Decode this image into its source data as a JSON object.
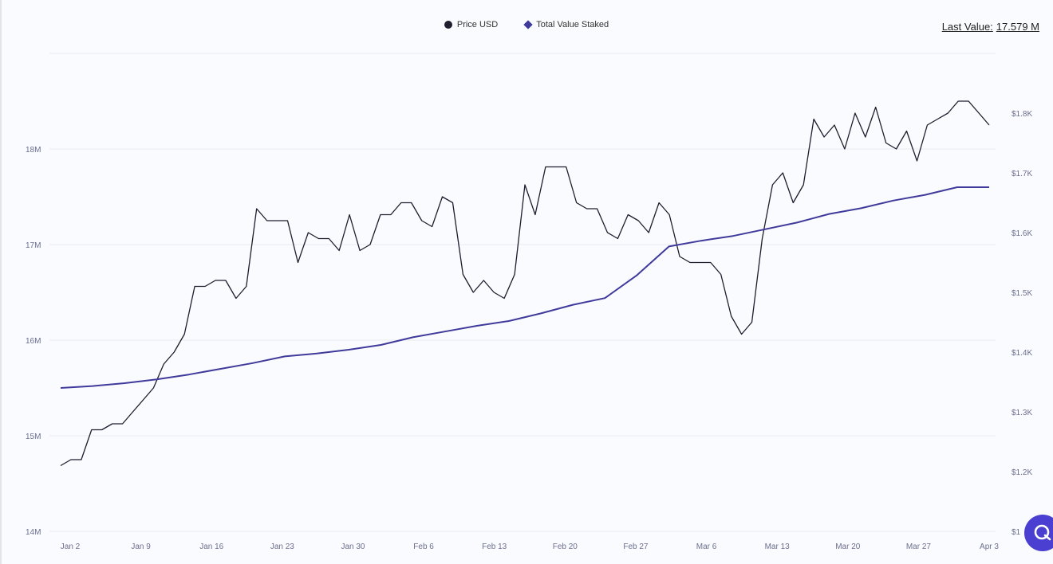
{
  "legend": {
    "price_label": "Price USD",
    "tvs_label": "Total Value Staked"
  },
  "last_value": {
    "label": "Last Value:",
    "value": "17.579 M"
  },
  "colors": {
    "price": "#1f1d2e",
    "tvs": "#3f3a9b",
    "grid": "#e9ebf2",
    "axis_text": "#6b6f8e",
    "chat_bubble": "#4a3fd0"
  },
  "chart_data": {
    "type": "line",
    "x_ticks": [
      "Jan 2",
      "Jan 9",
      "Jan 16",
      "Jan 23",
      "Jan 30",
      "Feb 6",
      "Feb 13",
      "Feb 20",
      "Feb 27",
      "Mar 6",
      "Mar 13",
      "Mar 20",
      "Mar 27",
      "Apr 3"
    ],
    "y_left": {
      "ticks": [
        14,
        15,
        16,
        17,
        18
      ],
      "tick_labels": [
        "14M",
        "15M",
        "16M",
        "17M",
        "18M"
      ],
      "range": [
        14,
        19
      ]
    },
    "y_right": {
      "ticks": [
        1,
        1.2,
        1.3,
        1.4,
        1.5,
        1.6,
        1.7,
        1.8
      ],
      "tick_labels": [
        "$1",
        "$1.2K",
        "$1.3K",
        "$1.4K",
        "$1.5K",
        "$1.6K",
        "$1.7K",
        "$1.8K"
      ],
      "range": [
        1.1,
        1.9
      ]
    },
    "grid": true,
    "series": [
      {
        "name": "Price USD",
        "axis": "right",
        "values": [
          1.21,
          1.22,
          1.22,
          1.27,
          1.27,
          1.28,
          1.28,
          1.3,
          1.32,
          1.34,
          1.38,
          1.4,
          1.43,
          1.51,
          1.51,
          1.52,
          1.52,
          1.49,
          1.51,
          1.64,
          1.62,
          1.62,
          1.62,
          1.55,
          1.6,
          1.59,
          1.59,
          1.57,
          1.63,
          1.57,
          1.58,
          1.63,
          1.63,
          1.65,
          1.65,
          1.62,
          1.61,
          1.66,
          1.65,
          1.53,
          1.5,
          1.52,
          1.5,
          1.49,
          1.53,
          1.68,
          1.63,
          1.71,
          1.71,
          1.71,
          1.65,
          1.64,
          1.64,
          1.6,
          1.59,
          1.63,
          1.62,
          1.6,
          1.65,
          1.63,
          1.56,
          1.55,
          1.55,
          1.55,
          1.53,
          1.46,
          1.43,
          1.45,
          1.59,
          1.68,
          1.7,
          1.65,
          1.68,
          1.79,
          1.76,
          1.78,
          1.74,
          1.8,
          1.76,
          1.81,
          1.75,
          1.74,
          1.77,
          1.72,
          1.78,
          1.79,
          1.8,
          1.82,
          1.82,
          1.8,
          1.78
        ]
      },
      {
        "name": "Total Value Staked",
        "axis": "left",
        "values": [
          15.5,
          15.52,
          15.55,
          15.59,
          15.64,
          15.7,
          15.76,
          15.83,
          15.86,
          15.9,
          15.95,
          16.03,
          16.09,
          16.15,
          16.2,
          16.28,
          16.37,
          16.44,
          16.68,
          16.98,
          17.04,
          17.09,
          17.16,
          17.23,
          17.32,
          17.38,
          17.46,
          17.52,
          17.6,
          17.6
        ]
      }
    ]
  }
}
